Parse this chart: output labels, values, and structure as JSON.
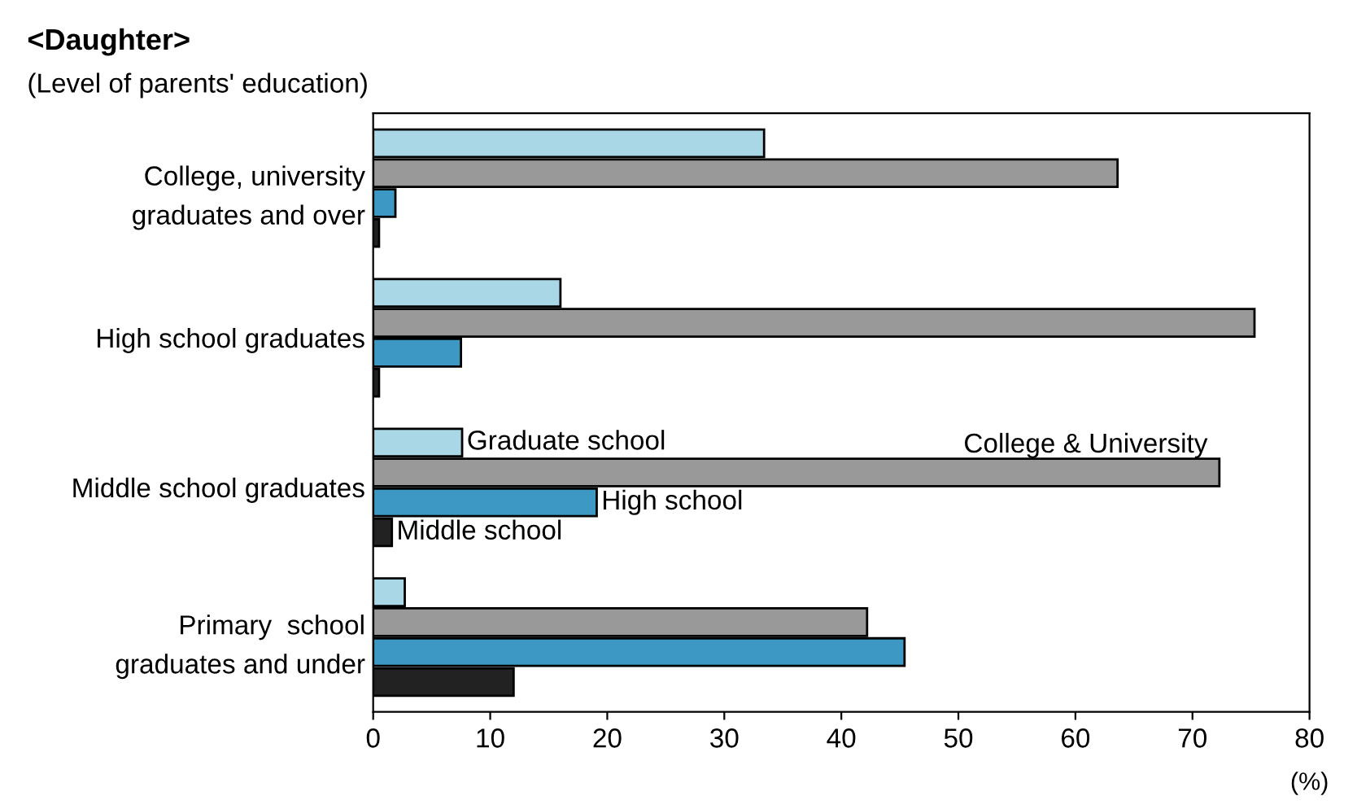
{
  "chart_data": {
    "type": "bar",
    "orientation": "horizontal",
    "title": "<Daughter>",
    "subtitle": "(Level of parents' education)",
    "xlabel": "(%)",
    "categories": [
      "College, university\ngraduates and over",
      "High school graduates",
      "Middle school graduates",
      "Primary  school\ngraduates and under"
    ],
    "series": [
      {
        "name": "Graduate school",
        "color": "#a9d7e6",
        "values": [
          33.4,
          16.0,
          7.6,
          2.7
        ]
      },
      {
        "name": "College & University",
        "color": "#999999",
        "values": [
          63.6,
          75.3,
          72.3,
          42.2
        ]
      },
      {
        "name": "High school",
        "color": "#3d98c4",
        "values": [
          1.9,
          7.5,
          19.1,
          45.4
        ]
      },
      {
        "name": "Middle school",
        "color": "#222222",
        "values": [
          0.5,
          0.5,
          1.6,
          12.0
        ]
      }
    ],
    "xlim": [
      0,
      80
    ],
    "xticks": [
      0,
      10,
      20,
      30,
      40,
      50,
      60,
      70,
      80
    ],
    "grid": false,
    "legend": false
  }
}
